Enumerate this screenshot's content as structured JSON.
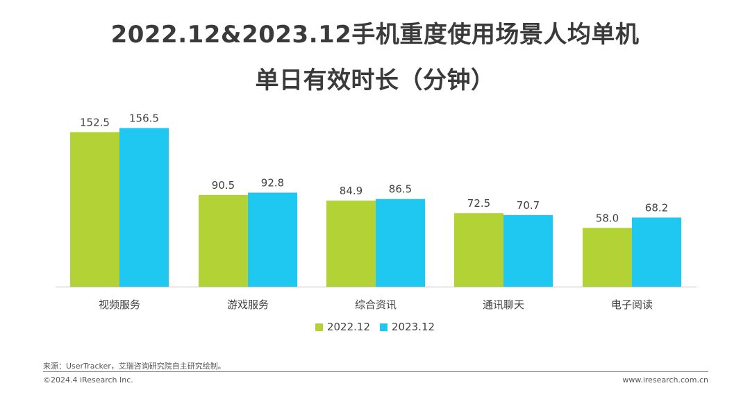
{
  "chart_data": {
    "type": "bar",
    "title_line1": "2022.12&2023.12手机重度使用场景人均单机",
    "title_line2": "单日有效时长（分钟）",
    "categories": [
      "视频服务",
      "游戏服务",
      "综合资讯",
      "通讯聊天",
      "电子阅读"
    ],
    "series": [
      {
        "name": "2022.12",
        "color": "#b2d235",
        "values": [
          152.5,
          90.5,
          84.9,
          72.5,
          58.0
        ],
        "labels": [
          "152.5",
          "90.5",
          "84.9",
          "72.5",
          "58.0"
        ]
      },
      {
        "name": "2023.12",
        "color": "#1fc8f0",
        "values": [
          156.5,
          92.8,
          86.5,
          70.7,
          68.2
        ],
        "labels": [
          "156.5",
          "92.8",
          "86.5",
          "70.7",
          "68.2"
        ]
      }
    ],
    "ylim": [
      0,
      160
    ],
    "grid": false,
    "legend_position": "bottom"
  },
  "footer": {
    "source": "来源：UserTracker，艾瑞咨询研究院自主研究绘制。",
    "copyright": "©2024.4 iResearch Inc.",
    "website": "www.iresearch.com.cn"
  }
}
